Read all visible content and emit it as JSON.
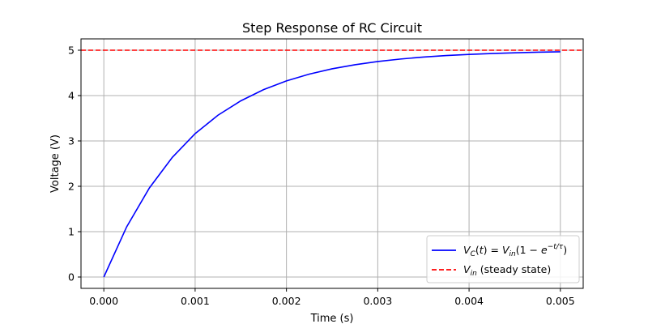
{
  "chart_data": {
    "type": "line",
    "title": "Step Response of RC Circuit",
    "xlabel": "Time (s)",
    "ylabel": "Voltage (V)",
    "xlim": [
      -0.00025,
      0.00525
    ],
    "ylim": [
      -0.25,
      5.25
    ],
    "x_ticks": [
      0.0,
      0.001,
      0.002,
      0.003,
      0.004,
      0.005
    ],
    "x_tick_labels": [
      "0.000",
      "0.001",
      "0.002",
      "0.003",
      "0.004",
      "0.005"
    ],
    "y_ticks": [
      0,
      1,
      2,
      3,
      4,
      5
    ],
    "y_tick_labels": [
      "0",
      "1",
      "2",
      "3",
      "4",
      "5"
    ],
    "grid": true,
    "legend_position": "lower-right",
    "series": [
      {
        "name": "V_C(t) = V_in(1 − e^(−t/τ))",
        "color": "#0000ff",
        "style": "solid",
        "x": [
          0.0,
          0.00025,
          0.0005,
          0.00075,
          0.001,
          0.00125,
          0.0015,
          0.00175,
          0.002,
          0.00225,
          0.0025,
          0.00275,
          0.003,
          0.00325,
          0.0035,
          0.00375,
          0.004,
          0.00425,
          0.0045,
          0.00475,
          0.005
        ],
        "y": [
          0.0,
          1.106,
          1.967,
          2.638,
          3.161,
          3.567,
          3.884,
          4.131,
          4.323,
          4.473,
          4.59,
          4.68,
          4.751,
          4.806,
          4.849,
          4.882,
          4.908,
          4.928,
          4.944,
          4.956,
          4.966
        ]
      },
      {
        "name": "V_in (steady state)",
        "color": "#ff0000",
        "style": "dashed",
        "y_constant": 5
      }
    ]
  }
}
